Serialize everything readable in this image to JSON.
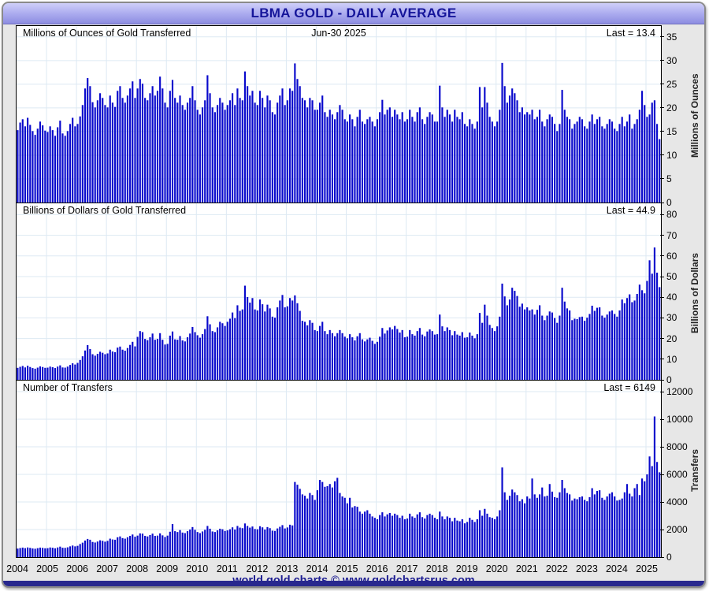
{
  "window": {
    "title": "LBMA GOLD - DAILY AVERAGE",
    "footer": "world gold charts © www.goldchartsrus.com"
  },
  "colors": {
    "bar": "#0909cc",
    "grid": "#dde9f3",
    "header_text": "#15159a",
    "footer_text": "#1d1d92",
    "bottom_strip": "#28288e",
    "header_gradient_top": "#cfcff9",
    "header_gradient_bottom": "#8d8de1"
  },
  "x_years": [
    2004,
    2005,
    2006,
    2007,
    2008,
    2009,
    2010,
    2011,
    2012,
    2013,
    2014,
    2015,
    2016,
    2017,
    2018,
    2019,
    2020,
    2021,
    2022,
    2023,
    2024,
    2025
  ],
  "chart_data": [
    {
      "type": "bar",
      "title": "Millions of Ounces of Gold Transferred",
      "center_label": "Jun-30 2025",
      "last_label": "Last = 13.4",
      "last_value": 13.4,
      "ylabel": "Millions of Ounces",
      "yticks": [
        0,
        5,
        10,
        15,
        20,
        25,
        30,
        35
      ],
      "ylim": [
        0,
        37.3
      ],
      "x_start": "2004-01",
      "x_end": "2025-06",
      "freq": "monthly",
      "values": [
        15.3,
        16.9,
        17.6,
        16.1,
        17.9,
        16.4,
        15.1,
        14.3,
        15.6,
        17.1,
        16.3,
        15.2,
        14.9,
        16.1,
        15.3,
        14.1,
        15.9,
        17.3,
        14.6,
        14.1,
        15.1,
        16.6,
        17.9,
        16.1,
        16.6,
        18.2,
        20.6,
        24.1,
        26.3,
        24.6,
        21.2,
        20.1,
        21.6,
        23.1,
        22.1,
        20.6,
        20.1,
        22.6,
        21.1,
        20.2,
        23.6,
        24.6,
        22.1,
        21.1,
        22.6,
        24.1,
        25.6,
        22.1,
        24.1,
        26.1,
        25.1,
        22.1,
        21.6,
        23.1,
        24.6,
        22.6,
        23.6,
        26.6,
        24.1,
        21.1,
        20.1,
        23.6,
        25.9,
        22.1,
        21.1,
        22.6,
        20.6,
        19.6,
        21.1,
        22.1,
        24.6,
        21.6,
        19.6,
        18.6,
        20.1,
        21.6,
        26.9,
        23.1,
        20.1,
        19.1,
        20.6,
        22.1,
        21.1,
        19.6,
        20.6,
        21.6,
        23.1,
        20.6,
        24.1,
        22.1,
        21.6,
        27.7,
        24.6,
        22.6,
        23.6,
        21.1,
        20.6,
        23.6,
        22.1,
        20.1,
        22.6,
        21.6,
        19.1,
        18.6,
        21.1,
        22.6,
        24.1,
        20.6,
        21.6,
        24.1,
        23.6,
        29.4,
        26.1,
        24.6,
        22.1,
        21.6,
        20.1,
        22.1,
        21.6,
        19.6,
        19.6,
        21.1,
        22.6,
        19.1,
        18.1,
        19.6,
        18.6,
        17.6,
        19.1,
        20.6,
        19.6,
        17.6,
        17.1,
        18.6,
        17.6,
        16.1,
        18.1,
        19.6,
        17.1,
        16.6,
        17.6,
        18.1,
        17.1,
        16.1,
        17.6,
        19.1,
        21.7,
        18.6,
        19.6,
        20.1,
        18.1,
        19.6,
        18.6,
        17.6,
        19.1,
        17.1,
        17.6,
        19.6,
        18.1,
        17.1,
        19.1,
        20.1,
        17.6,
        16.6,
        18.1,
        19.1,
        18.6,
        17.1,
        17.1,
        24.7,
        20.1,
        18.1,
        19.6,
        18.6,
        17.1,
        19.6,
        18.1,
        17.6,
        19.1,
        16.6,
        16.1,
        17.6,
        16.6,
        15.6,
        17.1,
        24.4,
        20.1,
        24.4,
        21.1,
        18.1,
        17.1,
        16.1,
        17.1,
        19.6,
        29.5,
        24.6,
        21.1,
        22.6,
        24.1,
        23.1,
        21.6,
        19.1,
        20.1,
        18.6,
        19.1,
        18.6,
        19.6,
        17.6,
        18.1,
        19.6,
        17.1,
        16.1,
        17.6,
        18.6,
        18.1,
        16.6,
        15.1,
        16.6,
        23.8,
        19.6,
        18.1,
        17.6,
        15.6,
        16.6,
        17.1,
        18.1,
        17.6,
        16.1,
        15.6,
        17.1,
        18.6,
        16.6,
        17.6,
        18.1,
        16.1,
        15.6,
        16.6,
        17.6,
        17.1,
        15.6,
        15.1,
        16.6,
        18.1,
        16.1,
        17.1,
        18.6,
        15.6,
        16.6,
        17.6,
        19.6,
        23.6,
        20.6,
        18.1,
        18.6,
        21.1,
        21.6,
        16.6,
        13.4
      ]
    },
    {
      "type": "bar",
      "title": "Billions of Dollars of Gold Transferred",
      "center_label": "",
      "last_label": "Last = 44.9",
      "last_value": 44.9,
      "ylabel": "Billions of Dollars",
      "yticks": [
        0,
        10,
        20,
        30,
        40,
        50,
        60,
        70,
        80
      ],
      "ylim": [
        0,
        85.5
      ],
      "x_start": "2004-01",
      "x_end": "2025-06",
      "freq": "monthly",
      "values": [
        5.8,
        6.3,
        6.7,
        6.0,
        6.8,
        6.2,
        5.7,
        5.4,
        5.9,
        6.5,
        6.2,
        5.8,
        5.9,
        6.4,
        6.1,
        5.7,
        6.4,
        7.0,
        6.0,
        5.9,
        6.4,
        7.2,
        8.0,
        7.4,
        8.2,
        9.6,
        11.4,
        14.2,
        16.8,
        14.9,
        12.4,
        11.7,
        12.6,
        13.6,
        13.1,
        12.4,
        12.8,
        14.6,
        13.7,
        13.4,
        15.6,
        16.1,
        14.6,
        14.1,
        15.4,
        16.9,
        18.4,
        16.2,
        20.8,
        23.6,
        23.1,
        19.8,
        19.2,
        20.6,
        22.4,
        19.4,
        19.8,
        22.6,
        19.4,
        17.1,
        17.4,
        21.4,
        23.4,
        19.6,
        19.4,
        21.2,
        19.1,
        18.6,
        20.6,
        22.4,
        25.6,
        23.1,
        21.6,
        20.4,
        22.1,
        24.6,
        30.8,
        26.9,
        23.6,
        23.1,
        25.4,
        28.1,
        27.4,
        26.1,
        28.1,
        29.6,
        32.6,
        29.9,
        36.1,
        33.4,
        34.1,
        45.6,
        40.1,
        37.4,
        39.6,
        34.1,
        33.6,
        38.9,
        36.6,
        33.1,
        36.4,
        34.6,
        30.6,
        30.1,
        35.1,
        38.4,
        41.1,
        35.1,
        35.6,
        39.6,
        38.4,
        40.9,
        37.1,
        33.4,
        28.6,
        28.1,
        26.4,
        28.9,
        27.6,
        24.1,
        23.6,
        26.1,
        28.1,
        23.6,
        22.1,
        24.1,
        22.6,
        21.1,
        22.6,
        24.1,
        22.6,
        20.9,
        20.1,
        22.1,
        20.6,
        19.1,
        21.1,
        22.6,
        19.6,
        18.6,
        19.6,
        20.4,
        18.9,
        17.4,
        18.4,
        20.9,
        25.1,
        22.4,
        23.9,
        25.4,
        24.4,
        26.1,
        24.6,
        22.9,
        24.1,
        20.6,
        20.9,
        24.1,
        22.1,
        21.4,
        23.6,
        25.1,
        21.9,
        21.1,
        23.4,
        24.4,
        23.6,
        21.9,
        22.1,
        31.6,
        25.9,
        23.6,
        25.4,
        24.1,
        21.6,
        23.6,
        21.9,
        21.4,
        23.1,
        20.4,
        20.6,
        22.9,
        21.4,
        20.1,
        22.1,
        32.4,
        27.6,
        36.4,
        31.1,
        26.6,
        25.1,
        23.6,
        25.9,
        30.6,
        46.6,
        40.4,
        36.1,
        38.9,
        44.6,
        43.1,
        40.6,
        35.4,
        36.9,
        34.1,
        35.1,
        33.6,
        34.1,
        31.6,
        33.9,
        36.1,
        31.1,
        28.9,
        31.1,
        33.1,
        32.6,
        29.9,
        27.6,
        31.1,
        44.6,
        37.9,
        34.6,
        33.6,
        28.9,
        29.6,
        29.4,
        30.4,
        30.6,
        28.6,
        30.1,
        31.9,
        35.9,
        33.4,
        34.9,
        35.1,
        31.1,
        30.1,
        31.6,
        33.1,
        33.6,
        31.9,
        30.6,
        33.6,
        38.9,
        37.1,
        39.6,
        41.4,
        37.6,
        38.4,
        41.6,
        46.1,
        43.4,
        41.9,
        47.9,
        57.9,
        51.4,
        64.1,
        51.9,
        44.9
      ]
    },
    {
      "type": "bar",
      "title": "Number of Transfers",
      "center_label": "",
      "last_label": "Last = 6149",
      "last_value": 6149,
      "ylabel": "Transfers",
      "yticks": [
        0,
        2000,
        4000,
        6000,
        8000,
        10000,
        12000
      ],
      "ylim": [
        0,
        12800
      ],
      "x_start": "2004-01",
      "x_end": "2025-06",
      "freq": "monthly",
      "values": [
        620,
        660,
        690,
        650,
        700,
        670,
        630,
        610,
        650,
        690,
        670,
        640,
        650,
        700,
        680,
        640,
        700,
        760,
        680,
        670,
        710,
        780,
        840,
        780,
        820,
        950,
        1050,
        1200,
        1320,
        1260,
        1100,
        1060,
        1130,
        1220,
        1180,
        1120,
        1180,
        1340,
        1280,
        1260,
        1440,
        1500,
        1380,
        1340,
        1440,
        1540,
        1640,
        1480,
        1560,
        1720,
        1700,
        1540,
        1500,
        1600,
        1700,
        1540,
        1560,
        1720,
        1580,
        1460,
        1560,
        1840,
        2400,
        1880,
        1820,
        1960,
        1780,
        1740,
        1880,
        2000,
        2180,
        1980,
        1820,
        1740,
        1860,
        1980,
        2260,
        2060,
        1860,
        1820,
        1940,
        2060,
        2020,
        1900,
        1940,
        2020,
        2160,
        2000,
        2260,
        2140,
        2100,
        2440,
        2260,
        2140,
        2220,
        2040,
        2020,
        2240,
        2160,
        2000,
        2180,
        2100,
        1920,
        1900,
        2080,
        2200,
        2320,
        2080,
        2150,
        2350,
        2300,
        5450,
        5250,
        4950,
        4550,
        4450,
        4250,
        4650,
        4500,
        4150,
        4850,
        5600,
        5450,
        5100,
        5150,
        5300,
        5050,
        5500,
        5750,
        4650,
        4400,
        4300,
        3900,
        4300,
        3600,
        3700,
        3650,
        3300,
        3150,
        3300,
        3400,
        3150,
        2950,
        2850,
        2750,
        3050,
        3250,
        2950,
        3100,
        3200,
        3000,
        3150,
        3050,
        2850,
        3000,
        2750,
        2800,
        3150,
        2950,
        2850,
        3100,
        3250,
        2900,
        2800,
        3050,
        3150,
        3050,
        2850,
        2750,
        3300,
        2950,
        2750,
        2950,
        2850,
        2600,
        2850,
        2650,
        2600,
        2750,
        2450,
        2550,
        2850,
        2700,
        2550,
        2750,
        3400,
        3000,
        3500,
        3150,
        2900,
        2850,
        2750,
        2950,
        3400,
        6500,
        4700,
        4150,
        4450,
        4900,
        4700,
        4500,
        4050,
        4200,
        3900,
        4400,
        4250,
        5700,
        4550,
        4300,
        4550,
        5050,
        4400,
        4450,
        5300,
        4750,
        4350,
        4300,
        4700,
        5600,
        5000,
        4650,
        4550,
        4100,
        4250,
        4200,
        4350,
        4400,
        4150,
        4050,
        4350,
        5000,
        4550,
        4800,
        4850,
        4300,
        4150,
        4400,
        4600,
        4700,
        4400,
        4100,
        4150,
        4250,
        4700,
        5300,
        4600,
        4400,
        5000,
        5300,
        4500,
        5700,
        5500,
        6000,
        7300,
        6600,
        10200,
        6900,
        6149
      ]
    }
  ]
}
